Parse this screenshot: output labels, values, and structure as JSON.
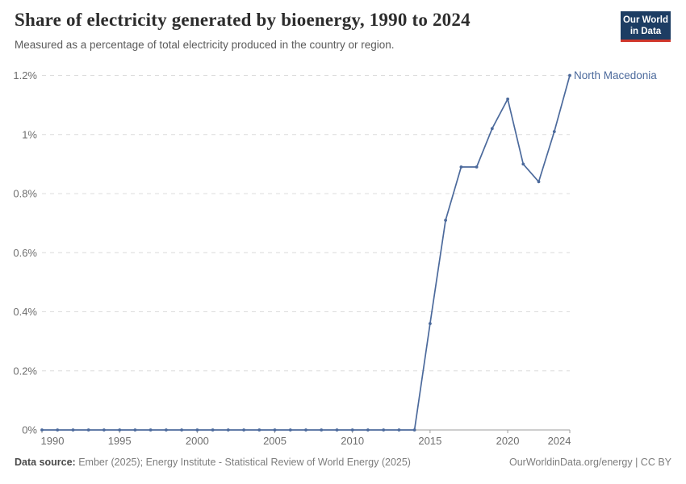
{
  "header": {
    "title": "Share of electricity generated by bioenergy, 1990 to 2024",
    "subtitle": "Measured as a percentage of total electricity produced in the country or region.",
    "logo": {
      "line1": "Our World",
      "line2": "in Data"
    }
  },
  "chart_data": {
    "type": "line",
    "title": "Share of electricity generated by bioenergy, 1990 to 2024",
    "xlabel": "",
    "ylabel": "",
    "xlim": [
      1990,
      2024
    ],
    "ylim": [
      0,
      1.2
    ],
    "grid": "horizontal-dashed",
    "legend_position": "end-of-line-label",
    "x": [
      1990,
      1991,
      1992,
      1993,
      1994,
      1995,
      1996,
      1997,
      1998,
      1999,
      2000,
      2001,
      2002,
      2003,
      2004,
      2005,
      2006,
      2007,
      2008,
      2009,
      2010,
      2011,
      2012,
      2013,
      2014,
      2015,
      2016,
      2017,
      2018,
      2019,
      2020,
      2021,
      2022,
      2023,
      2024
    ],
    "xticks": [
      1990,
      1995,
      2000,
      2005,
      2010,
      2015,
      2020,
      2024
    ],
    "yticks": [
      {
        "value": 0,
        "label": "0%"
      },
      {
        "value": 0.2,
        "label": "0.2%"
      },
      {
        "value": 0.4,
        "label": "0.4%"
      },
      {
        "value": 0.6,
        "label": "0.6%"
      },
      {
        "value": 0.8,
        "label": "0.8%"
      },
      {
        "value": 1,
        "label": "1%"
      },
      {
        "value": 1.2,
        "label": "1.2%"
      }
    ],
    "series": [
      {
        "name": "North Macedonia",
        "color": "#4c6a9c",
        "values": [
          0,
          0,
          0,
          0,
          0,
          0,
          0,
          0,
          0,
          0,
          0,
          0,
          0,
          0,
          0,
          0,
          0,
          0,
          0,
          0,
          0,
          0,
          0,
          0,
          0,
          0.36,
          0.71,
          0.89,
          0.89,
          1.02,
          1.12,
          0.9,
          0.84,
          1.01,
          1.2
        ]
      }
    ]
  },
  "footer": {
    "source_label": "Data source:",
    "source_text": "Ember (2025); Energy Institute - Statistical Review of World Energy (2025)",
    "credit": "OurWorldinData.org/energy | CC BY"
  },
  "colors": {
    "accent_line": "#4c6a9c",
    "logo_navy": "#1d3d63",
    "logo_red": "#d0362b",
    "grid": "#dcdcdc",
    "axis": "#9e9e9e",
    "tick_text": "#6e6e6e"
  }
}
